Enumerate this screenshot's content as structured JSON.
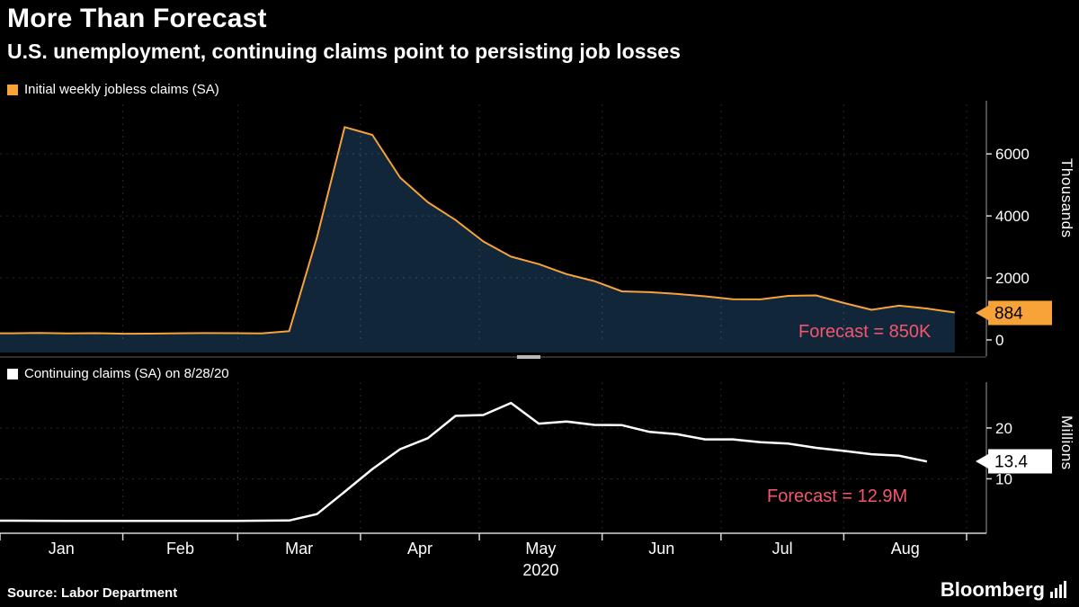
{
  "header": {
    "title": "More Than Forecast",
    "subtitle": "U.S. unemployment, continuing claims point to persisting job losses"
  },
  "colors": {
    "background": "#000000",
    "orange": "#f7a337",
    "area_fill": "#12263a",
    "white_line": "#ffffff",
    "forecast_pink": "#f4566e",
    "badge_text": "#000000",
    "axis_line": "#d8d8d8",
    "gridline": "rgba(255,255,255,0.16)"
  },
  "x_axis": {
    "domain_days": [
      0,
      244
    ],
    "tick_days": [
      0,
      31,
      60,
      91,
      121,
      152,
      182,
      213,
      244
    ],
    "month_labels": [
      "Jan",
      "Feb",
      "Mar",
      "Apr",
      "May",
      "Jun",
      "Jul",
      "Aug"
    ],
    "year_label": "2020",
    "year_under_index": 4
  },
  "chart_data": [
    {
      "type": "area",
      "name": "initial-jobless-claims",
      "legend": "Initial weekly jobless claims (SA)",
      "unit_label": "Thousands",
      "ylabel": "Thousands",
      "ylim": [
        0,
        7600
      ],
      "yticks": [
        0,
        2000,
        4000,
        6000
      ],
      "grid": true,
      "legend_position": "top-left",
      "color": "#f7a337",
      "fill": "#12263a",
      "badge_color": "#f7a337",
      "last_value_label": "884",
      "forecast_label": "Forecast = 850K",
      "forecast_value": "850K",
      "x_days": [
        3,
        10,
        17,
        24,
        31,
        38,
        45,
        52,
        59,
        66,
        73,
        80,
        87,
        94,
        101,
        108,
        115,
        122,
        129,
        136,
        143,
        150,
        157,
        164,
        171,
        178,
        185,
        192,
        199,
        206,
        213,
        220,
        227,
        234,
        241
      ],
      "values": [
        214,
        223,
        212,
        217,
        201,
        204,
        215,
        220,
        217,
        211,
        282,
        3307,
        6867,
        6615,
        5237,
        4442,
        3867,
        3176,
        2687,
        2446,
        2123,
        1897,
        1566,
        1540,
        1482,
        1408,
        1310,
        1308,
        1422,
        1435,
        1191,
        971,
        1104,
        1011,
        884
      ]
    },
    {
      "type": "line",
      "name": "continuing-claims",
      "legend": "Continuing claims (SA) on 8/28/20",
      "unit_label": "Millions",
      "ylabel": "Millions",
      "ylim": [
        0,
        29
      ],
      "yticks": [
        10,
        20
      ],
      "grid": true,
      "legend_position": "top-left",
      "color": "#ffffff",
      "fill": null,
      "badge_color": "#ffffff",
      "last_value_label": "13.4",
      "forecast_label": "Forecast = 12.9M",
      "forecast_value": "12.9M",
      "x_days": [
        3,
        10,
        17,
        24,
        31,
        38,
        45,
        52,
        59,
        66,
        73,
        80,
        87,
        94,
        101,
        108,
        115,
        122,
        129,
        136,
        143,
        150,
        157,
        164,
        171,
        178,
        185,
        192,
        199,
        206,
        213,
        220,
        227,
        234
      ],
      "values": [
        1.77,
        1.75,
        1.74,
        1.72,
        1.72,
        1.73,
        1.73,
        1.72,
        1.72,
        1.77,
        1.8,
        3.06,
        7.45,
        11.91,
        15.82,
        17.99,
        22.38,
        22.55,
        24.91,
        20.84,
        21.27,
        20.6,
        20.55,
        19.23,
        18.76,
        17.76,
        17.75,
        17.2,
        16.93,
        16.09,
        15.49,
        14.84,
        14.54,
        13.4
      ]
    }
  ],
  "footer": {
    "source": "Source: Labor Department",
    "brand": "Bloomberg"
  }
}
